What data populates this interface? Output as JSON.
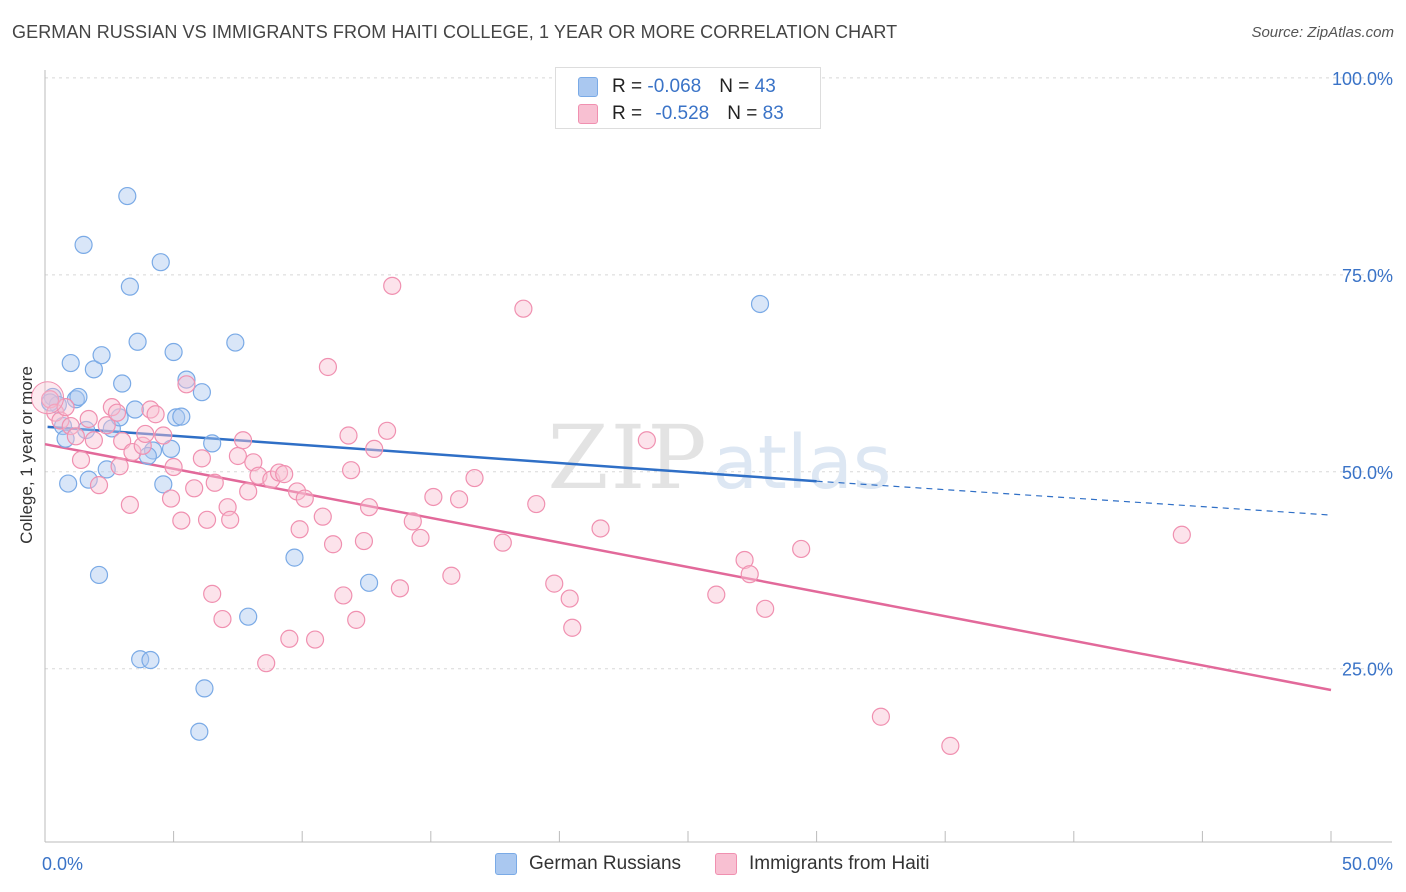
{
  "title": "GERMAN RUSSIAN VS IMMIGRANTS FROM HAITI COLLEGE, 1 YEAR OR MORE CORRELATION CHART",
  "source": "Source: ZipAtlas.com",
  "watermark": {
    "zip": "ZIP",
    "atlas": "atlas"
  },
  "legend": {
    "r_label": "R = ",
    "n_label": "N = ",
    "items": [
      {
        "name": "German Russians",
        "r": "-0.068",
        "n": "43",
        "color": "#aac8f0",
        "stroke": "#7aaae6"
      },
      {
        "name": "Immigrants from Haiti",
        "r": "-0.528",
        "n": "83",
        "color": "#f8c0d2",
        "stroke": "#f090b0"
      }
    ]
  },
  "chart_data": {
    "type": "scatter",
    "title": "GERMAN RUSSIAN VS IMMIGRANTS FROM HAITI COLLEGE, 1 YEAR OR MORE CORRELATION CHART",
    "xlabel": "",
    "ylabel": "College, 1 year or more",
    "xlim": [
      0,
      50
    ],
    "ylim": [
      3,
      101
    ],
    "x_tick_labels": [
      "0.0%",
      "50.0%"
    ],
    "y_ticks": [
      25,
      50,
      75,
      100
    ],
    "y_tick_labels": [
      "25.0%",
      "50.0%",
      "75.0%",
      "100.0%"
    ],
    "series": [
      {
        "name": "German Russians",
        "color": "#7aaae6",
        "fill": "#aac8f0",
        "line_color": "#2f6fc6",
        "trend": {
          "x_start": 0.1,
          "y_start": 55.7,
          "x_solid_end": 30.0,
          "y_solid_end": 48.8,
          "x_dash_end": 50.0,
          "y_dash_end": 44.5
        },
        "points": [
          [
            0.3,
            59.5
          ],
          [
            0.5,
            58.5
          ],
          [
            0.7,
            55.8
          ],
          [
            0.8,
            54.2
          ],
          [
            0.9,
            48.5
          ],
          [
            1.0,
            63.8
          ],
          [
            1.2,
            59.2
          ],
          [
            1.3,
            59.5
          ],
          [
            1.5,
            78.8
          ],
          [
            1.6,
            55.3
          ],
          [
            1.7,
            49.0
          ],
          [
            1.9,
            63.0
          ],
          [
            2.1,
            36.9
          ],
          [
            2.2,
            64.8
          ],
          [
            2.4,
            50.3
          ],
          [
            2.6,
            55.5
          ],
          [
            2.9,
            56.9
          ],
          [
            3.0,
            61.2
          ],
          [
            3.2,
            85.0
          ],
          [
            3.3,
            73.5
          ],
          [
            3.5,
            57.9
          ],
          [
            3.6,
            66.5
          ],
          [
            3.7,
            26.2
          ],
          [
            4.1,
            26.1
          ],
          [
            4.2,
            52.7
          ],
          [
            4.5,
            76.6
          ],
          [
            4.6,
            48.4
          ],
          [
            4.9,
            52.9
          ],
          [
            5.0,
            65.2
          ],
          [
            5.1,
            56.9
          ],
          [
            5.3,
            57.0
          ],
          [
            5.5,
            61.7
          ],
          [
            6.0,
            17.0
          ],
          [
            6.1,
            60.1
          ],
          [
            6.2,
            22.5
          ],
          [
            6.5,
            53.6
          ],
          [
            7.4,
            66.4
          ],
          [
            7.9,
            31.6
          ],
          [
            9.7,
            39.1
          ],
          [
            12.6,
            35.9
          ],
          [
            27.8,
            71.3
          ],
          [
            0.2,
            58.8
          ],
          [
            4.0,
            52.0
          ]
        ]
      },
      {
        "name": "Immigrants from Haiti",
        "color": "#f090b0",
        "fill": "#f8c0d2",
        "line_color": "#e2699a",
        "trend": {
          "x_start": 0.0,
          "y_start": 53.5,
          "x_solid_end": 50.0,
          "y_solid_end": 22.3
        },
        "points": [
          [
            0.2,
            59.2
          ],
          [
            0.4,
            57.5
          ],
          [
            0.6,
            56.5
          ],
          [
            0.8,
            58.2
          ],
          [
            1.0,
            55.8
          ],
          [
            1.2,
            54.5
          ],
          [
            1.4,
            51.5
          ],
          [
            1.7,
            56.7
          ],
          [
            1.9,
            54.0
          ],
          [
            2.1,
            48.3
          ],
          [
            2.4,
            55.9
          ],
          [
            2.6,
            58.2
          ],
          [
            2.8,
            57.5
          ],
          [
            2.9,
            50.7
          ],
          [
            3.0,
            53.9
          ],
          [
            3.3,
            45.8
          ],
          [
            3.4,
            52.5
          ],
          [
            3.8,
            53.3
          ],
          [
            3.9,
            54.8
          ],
          [
            4.1,
            57.9
          ],
          [
            4.3,
            57.3
          ],
          [
            4.6,
            54.6
          ],
          [
            4.9,
            46.6
          ],
          [
            5.0,
            50.6
          ],
          [
            5.3,
            43.8
          ],
          [
            5.5,
            61.1
          ],
          [
            5.8,
            47.9
          ],
          [
            6.1,
            51.7
          ],
          [
            6.3,
            43.9
          ],
          [
            6.5,
            34.5
          ],
          [
            6.6,
            48.6
          ],
          [
            6.9,
            31.3
          ],
          [
            7.1,
            45.5
          ],
          [
            7.2,
            43.9
          ],
          [
            7.5,
            52.0
          ],
          [
            7.7,
            54.0
          ],
          [
            7.9,
            47.5
          ],
          [
            8.1,
            51.2
          ],
          [
            8.3,
            49.5
          ],
          [
            8.6,
            25.7
          ],
          [
            8.8,
            49.0
          ],
          [
            9.1,
            49.9
          ],
          [
            9.3,
            49.7
          ],
          [
            9.5,
            28.8
          ],
          [
            9.8,
            47.5
          ],
          [
            9.9,
            42.7
          ],
          [
            10.1,
            46.6
          ],
          [
            10.5,
            28.7
          ],
          [
            10.8,
            44.3
          ],
          [
            11.0,
            63.3
          ],
          [
            11.2,
            40.8
          ],
          [
            11.6,
            34.3
          ],
          [
            11.8,
            54.6
          ],
          [
            11.9,
            50.2
          ],
          [
            12.1,
            31.2
          ],
          [
            12.4,
            41.2
          ],
          [
            12.6,
            45.5
          ],
          [
            12.8,
            52.9
          ],
          [
            13.3,
            55.2
          ],
          [
            13.5,
            73.6
          ],
          [
            13.8,
            35.2
          ],
          [
            14.3,
            43.7
          ],
          [
            14.6,
            41.6
          ],
          [
            15.1,
            46.8
          ],
          [
            15.8,
            36.8
          ],
          [
            16.1,
            46.5
          ],
          [
            16.7,
            49.2
          ],
          [
            17.8,
            41.0
          ],
          [
            18.6,
            70.7
          ],
          [
            19.1,
            45.9
          ],
          [
            19.8,
            35.8
          ],
          [
            20.4,
            33.9
          ],
          [
            20.5,
            30.2
          ],
          [
            21.6,
            42.8
          ],
          [
            23.4,
            54.0
          ],
          [
            26.1,
            34.4
          ],
          [
            27.2,
            38.8
          ],
          [
            27.4,
            37.0
          ],
          [
            28.0,
            32.6
          ],
          [
            29.4,
            40.2
          ],
          [
            32.5,
            18.9
          ],
          [
            35.2,
            15.2
          ],
          [
            44.2,
            42.0
          ]
        ]
      }
    ]
  }
}
